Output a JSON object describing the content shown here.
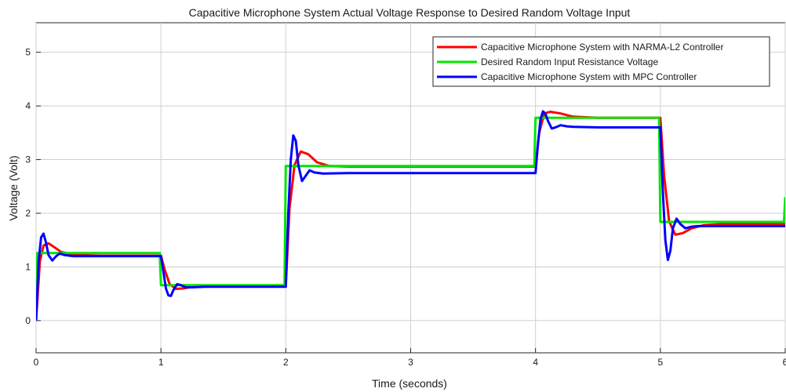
{
  "chart_data": {
    "type": "line",
    "title": "Capacitive Microphone System Actual Voltage Response to Desired Random Voltage Input",
    "xlabel": "Time (seconds)",
    "ylabel": "Voltage  (Volt)",
    "xlim": [
      0,
      6
    ],
    "ylim": [
      -0.6,
      5.55
    ],
    "xticks": [
      0,
      1,
      2,
      3,
      4,
      5,
      6
    ],
    "yticks": [
      0,
      1,
      2,
      3,
      4,
      5
    ],
    "grid": true,
    "legend_position": "top-right",
    "series": [
      {
        "name": "Capacitive Microphone System with NARMA-L2 Controller",
        "color": "#ff0000",
        "x": [
          0,
          0.03,
          0.06,
          0.1,
          0.15,
          0.2,
          0.3,
          0.5,
          1.0,
          1.03,
          1.07,
          1.12,
          1.18,
          1.25,
          1.35,
          1.5,
          2.0,
          2.03,
          2.07,
          2.12,
          2.18,
          2.25,
          2.35,
          2.5,
          3.0,
          4.0,
          4.03,
          4.07,
          4.12,
          4.2,
          4.3,
          4.5,
          5.0,
          5.03,
          5.07,
          5.12,
          5.18,
          5.25,
          5.35,
          5.5,
          6.0
        ],
        "y": [
          0,
          1.1,
          1.4,
          1.44,
          1.36,
          1.28,
          1.23,
          1.21,
          1.21,
          0.95,
          0.68,
          0.59,
          0.6,
          0.63,
          0.64,
          0.64,
          0.64,
          2.1,
          2.9,
          3.15,
          3.1,
          2.95,
          2.88,
          2.87,
          2.87,
          2.87,
          3.5,
          3.86,
          3.89,
          3.86,
          3.8,
          3.78,
          3.78,
          2.7,
          1.85,
          1.6,
          1.63,
          1.72,
          1.78,
          1.8,
          1.8
        ]
      },
      {
        "name": "Desired Random Input Resistance Voltage",
        "color": "#00e600",
        "x": [
          0,
          0.01,
          0.99,
          1.0,
          1.99,
          2.0,
          3.99,
          4.0,
          4.99,
          5.0,
          5.99,
          6.0
        ],
        "y": [
          0,
          1.26,
          1.26,
          0.66,
          0.66,
          2.88,
          2.88,
          3.78,
          3.78,
          1.84,
          1.84,
          2.3
        ]
      },
      {
        "name": "Capacitive Microphone System with MPC Controller",
        "color": "#0000ff",
        "x": [
          0,
          0.02,
          0.04,
          0.06,
          0.08,
          0.1,
          0.13,
          0.16,
          0.19,
          0.23,
          0.3,
          0.5,
          1.0,
          1.02,
          1.04,
          1.06,
          1.08,
          1.1,
          1.13,
          1.16,
          1.2,
          1.25,
          1.35,
          1.5,
          2.0,
          2.02,
          2.04,
          2.06,
          2.08,
          2.1,
          2.13,
          2.16,
          2.19,
          2.23,
          2.3,
          2.5,
          4.0,
          4.02,
          4.04,
          4.06,
          4.08,
          4.1,
          4.13,
          4.16,
          4.2,
          4.25,
          4.3,
          4.5,
          5.0,
          5.02,
          5.04,
          5.06,
          5.08,
          5.1,
          5.13,
          5.16,
          5.2,
          5.25,
          5.3,
          5.5,
          6.0
        ],
        "y": [
          0,
          1.1,
          1.55,
          1.62,
          1.45,
          1.22,
          1.12,
          1.2,
          1.25,
          1.22,
          1.2,
          1.2,
          1.2,
          0.9,
          0.6,
          0.47,
          0.46,
          0.57,
          0.68,
          0.66,
          0.62,
          0.62,
          0.63,
          0.63,
          0.63,
          2.0,
          3.0,
          3.45,
          3.35,
          2.9,
          2.6,
          2.7,
          2.8,
          2.76,
          2.74,
          2.75,
          2.75,
          3.3,
          3.75,
          3.9,
          3.85,
          3.72,
          3.58,
          3.6,
          3.64,
          3.62,
          3.61,
          3.6,
          3.6,
          2.4,
          1.5,
          1.13,
          1.3,
          1.72,
          1.9,
          1.8,
          1.72,
          1.75,
          1.76,
          1.76,
          1.76
        ]
      }
    ]
  }
}
